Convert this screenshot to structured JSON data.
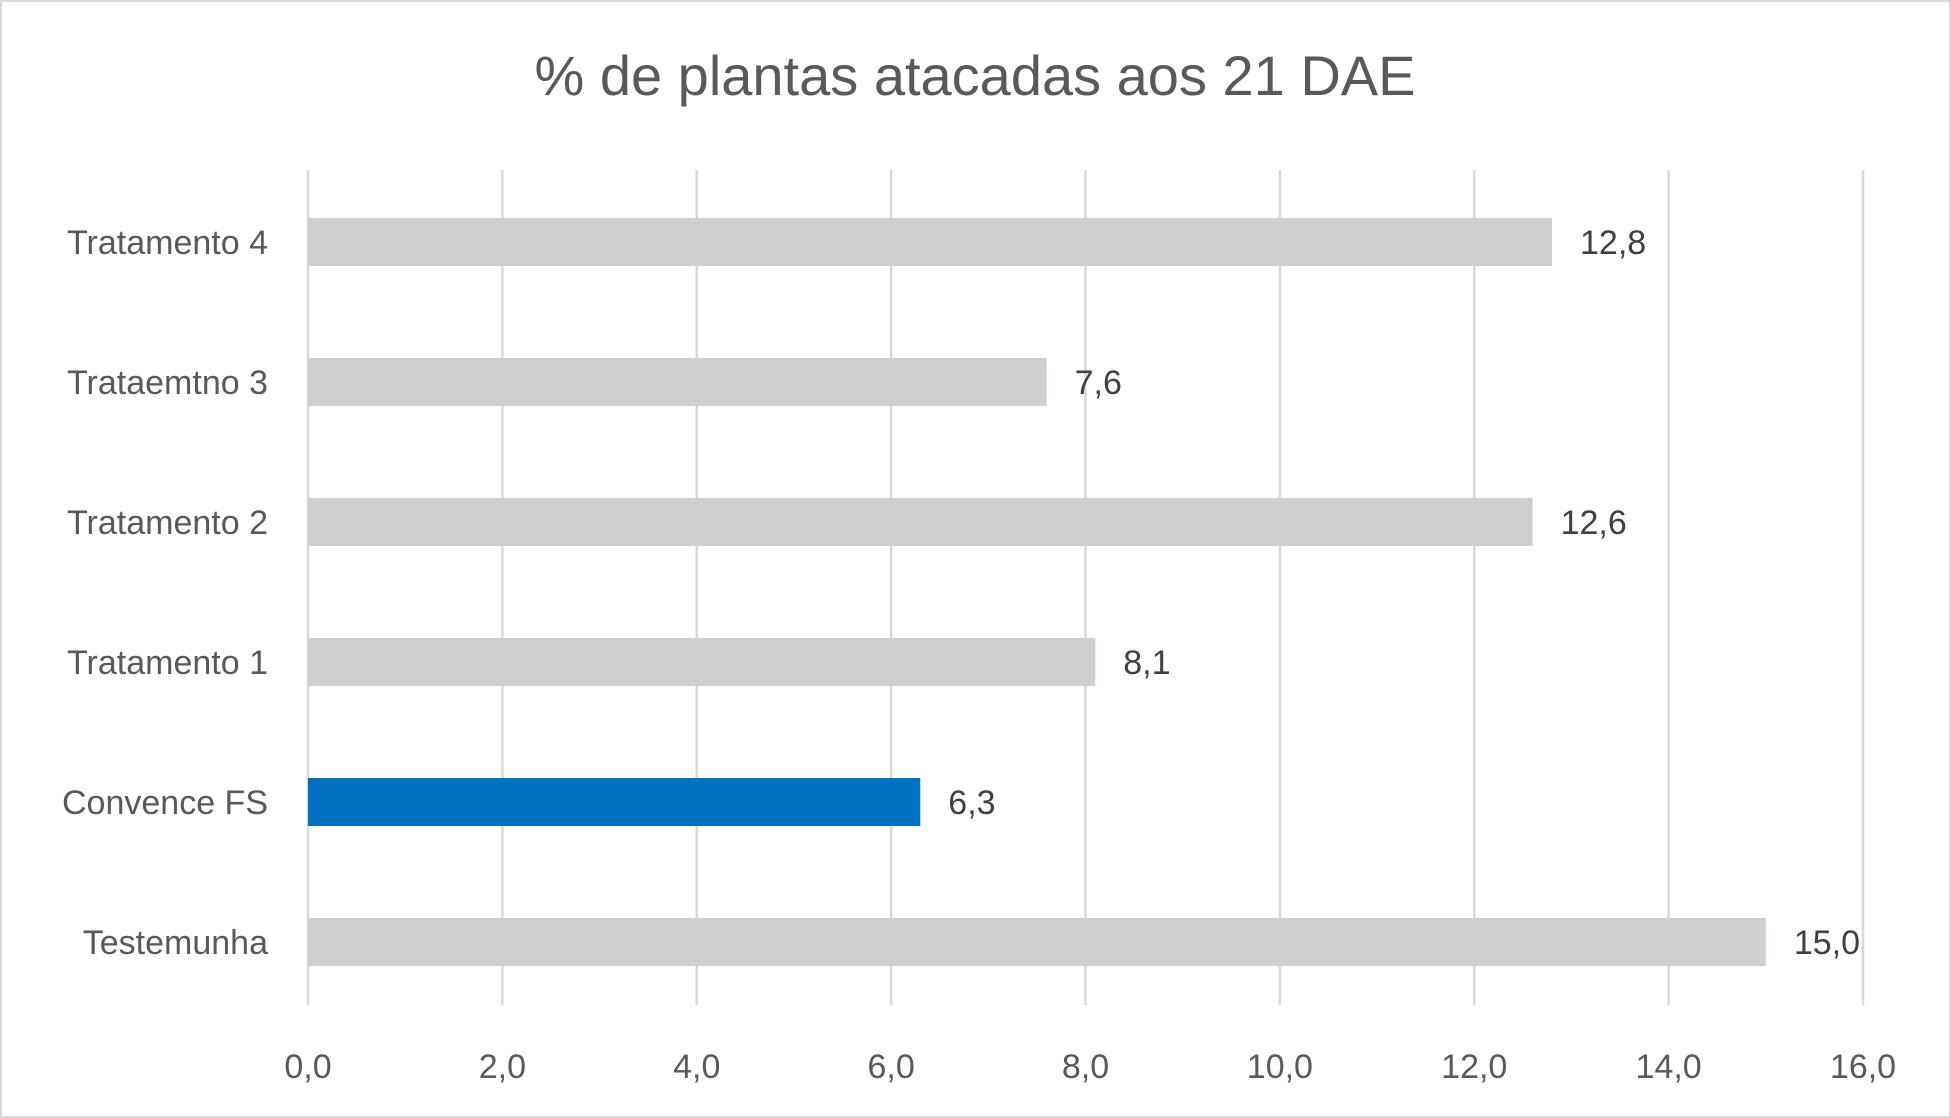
{
  "chart_data": {
    "type": "bar",
    "orientation": "horizontal",
    "title": "% de plantas atacadas aos 21 DAE",
    "categories": [
      "Tratamento 4",
      "Trataemtno 3",
      "Tratamento 2",
      "Tratamento 1",
      "Convence FS",
      "Testemunha"
    ],
    "values": [
      12.8,
      7.6,
      12.6,
      8.1,
      6.3,
      15.0
    ],
    "data_labels": [
      "12,8",
      "7,6",
      "12,6",
      "8,1",
      "6,3",
      "15,0"
    ],
    "bar_colors": [
      "#d0cecf",
      "#d0cecf",
      "#d0cecf",
      "#d0cecf",
      "#0070c0",
      "#d0cecf"
    ],
    "xlim": [
      0,
      16
    ],
    "x_ticks": [
      0,
      2,
      4,
      6,
      8,
      10,
      12,
      14,
      16
    ],
    "x_tick_labels": [
      "0,0",
      "2,0",
      "4,0",
      "6,0",
      "8,0",
      "10,0",
      "12,0",
      "14,0",
      "16,0"
    ],
    "grid": "vertical",
    "legend": "none",
    "xlabel": "",
    "ylabel": ""
  }
}
